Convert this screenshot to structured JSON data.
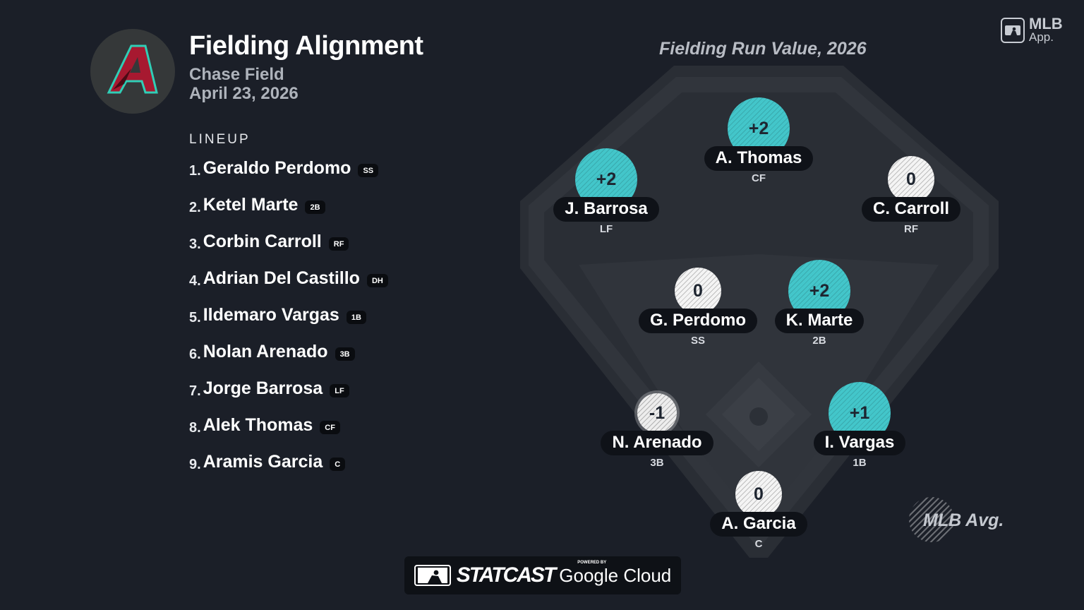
{
  "header": {
    "title": "Fielding Alignment",
    "venue": "Chase Field",
    "date": "April 23, 2026"
  },
  "team_logo": {
    "letter": "A",
    "colors": {
      "red": "#a71930",
      "teal": "#30ceb6",
      "black": "#000000"
    }
  },
  "lineup": {
    "title": "LINEUP",
    "items": [
      {
        "num": "1.",
        "name": "Geraldo Perdomo",
        "pos": "SS"
      },
      {
        "num": "2.",
        "name": "Ketel Marte",
        "pos": "2B"
      },
      {
        "num": "3.",
        "name": "Corbin Carroll",
        "pos": "RF"
      },
      {
        "num": "4.",
        "name": "Adrian Del Castillo",
        "pos": "DH"
      },
      {
        "num": "5.",
        "name": "Ildemaro Vargas",
        "pos": "1B"
      },
      {
        "num": "6.",
        "name": "Nolan Arenado",
        "pos": "3B"
      },
      {
        "num": "7.",
        "name": "Jorge Barrosa",
        "pos": "LF"
      },
      {
        "num": "8.",
        "name": "Alek Thomas",
        "pos": "CF"
      },
      {
        "num": "9.",
        "name": "Aramis Garcia",
        "pos": "C"
      }
    ]
  },
  "field": {
    "title": "Fielding Run Value, 2026",
    "players": {
      "cf": {
        "name": "A. Thomas",
        "pos": "CF",
        "value": "+2"
      },
      "lf": {
        "name": "J. Barrosa",
        "pos": "LF",
        "value": "+2"
      },
      "rf": {
        "name": "C. Carroll",
        "pos": "RF",
        "value": "0"
      },
      "ss": {
        "name": "G. Perdomo",
        "pos": "SS",
        "value": "0"
      },
      "2b": {
        "name": "K. Marte",
        "pos": "2B",
        "value": "+2"
      },
      "3b": {
        "name": "N. Arenado",
        "pos": "3B",
        "value": "-1"
      },
      "1b": {
        "name": "I. Vargas",
        "pos": "1B",
        "value": "+1"
      },
      "c": {
        "name": "A. Garcia",
        "pos": "C",
        "value": "0"
      }
    },
    "legend": "MLB Avg.",
    "colors": {
      "above_avg": "#43c6ca",
      "average": "#f4f4f4"
    }
  },
  "branding": {
    "app_line1": "MLB",
    "app_line2": "App.",
    "statcast": "STATCAST",
    "powered_by": "POWERED BY",
    "google_cloud": "Google Cloud"
  }
}
